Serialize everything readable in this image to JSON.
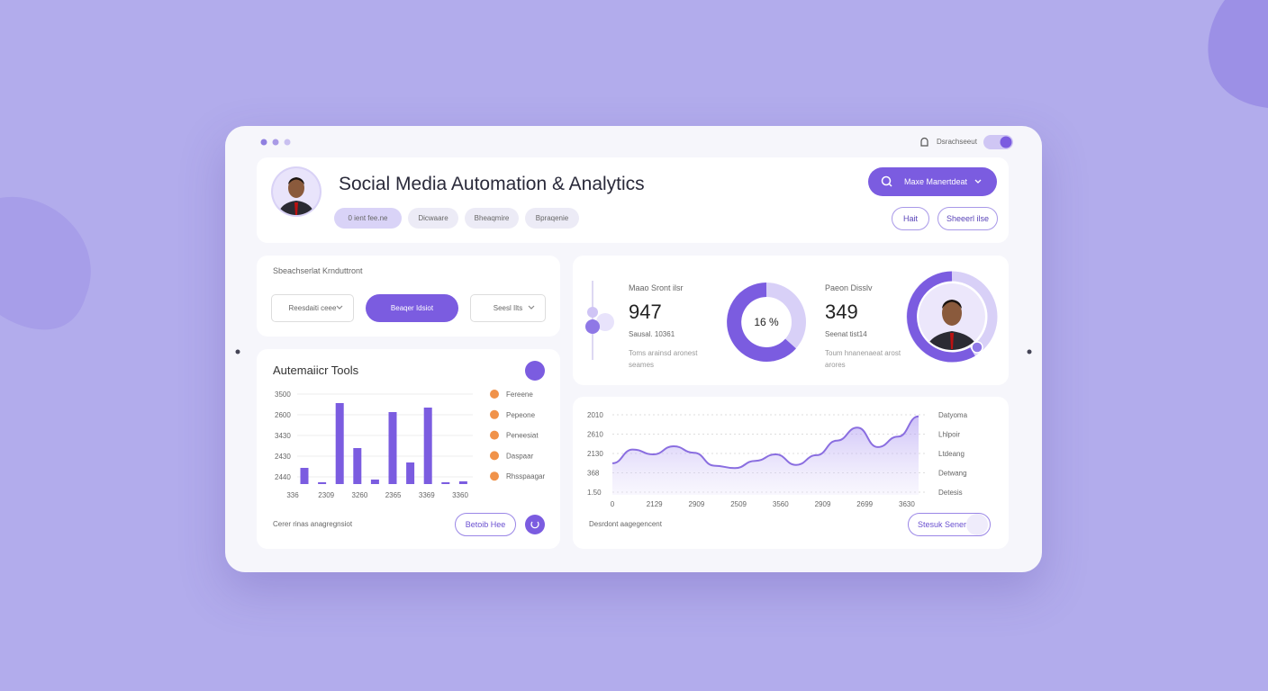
{
  "top_bar": {
    "link": "Dsrachseeut"
  },
  "header": {
    "title": "Social Media Automation & Analytics",
    "tabs": [
      "0 ient fee.ne",
      "Dicwaare",
      "Bheaqmire",
      "Bpraqenie"
    ],
    "search": "Maxe Manertdeat",
    "buttons": [
      "Hait",
      "Sheeerl ilse"
    ]
  },
  "filters": {
    "title": "Sbeachserlat Krnduttront",
    "dropdowns": [
      "Reesdaiti ceee",
      "Beaqer Idsiot",
      "Seesl Ilts"
    ]
  },
  "stats": [
    {
      "label": "Maao Sront ilsr",
      "value": 947,
      "sub": "Sausal. 10361",
      "desc": [
        "Toms arainsd aronest",
        "seames"
      ]
    },
    {
      "label": "Paeon Disslv",
      "value": 349,
      "sub": "Seenat tist14",
      "desc": [
        "Toum hnanenaeat arost",
        "arores"
      ]
    }
  ],
  "donut": {
    "label": "16 %"
  },
  "bar_chart": {
    "title": "Autemaiicr Tools",
    "y_labels": [
      "3500",
      "2600",
      "3430",
      "2430",
      "2440"
    ],
    "x_labels": [
      "336",
      "2309",
      "3260",
      "2365",
      "3369",
      "3360"
    ],
    "values": [
      18,
      2,
      90,
      40,
      5,
      80,
      24,
      85,
      2,
      3
    ],
    "ylim": [
      0,
      100
    ],
    "color": "#7b5ce0",
    "legend": [
      "Fereene",
      "Pepeone",
      "Peneesiat",
      "Daspaar",
      "Rhsspaagar"
    ],
    "legend_color": "#f0924a",
    "footer": "Cerer rinas anagregnsiot",
    "button": "Betoib Hee"
  },
  "line_chart": {
    "y_labels": [
      "2010",
      "2610",
      "2130",
      "368",
      "1.50"
    ],
    "x_labels": [
      "0",
      "2129",
      "2909",
      "2509",
      "3560",
      "2909",
      "2699",
      "3630"
    ],
    "values": [
      39,
      56,
      50,
      60,
      52,
      36,
      33,
      42,
      50,
      37,
      49,
      67,
      83,
      59,
      72,
      97
    ],
    "ylim": [
      0,
      100
    ],
    "color": "#8a6ee0",
    "side_labels": [
      "Datyoma",
      "Lhlpoir",
      "Ltdeang",
      "Detwang",
      "Detesis"
    ],
    "footer": "Desrdont aagegencent",
    "button": "Stesuk Sener"
  }
}
